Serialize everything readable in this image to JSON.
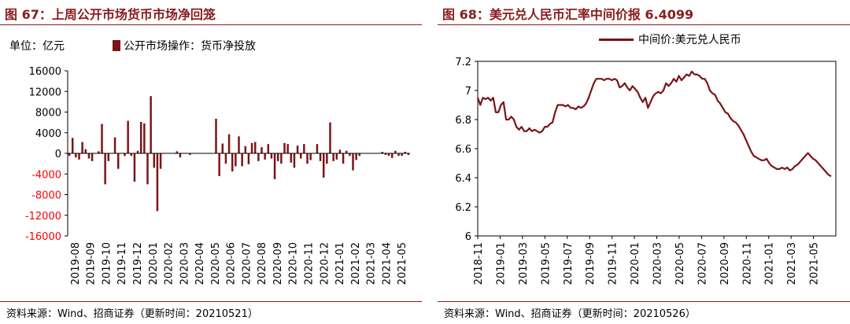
{
  "charts": {
    "left": {
      "title": "图 67：上周公开市场货币市场净回笼",
      "unit_label": "单位：亿元",
      "source": "资料来源：Wind、招商证券（更新时间：20210521）"
    },
    "right": {
      "title": "图 68：美元兑人民币汇率中间价报 6.4099",
      "source": "资料来源：Wind、招商证券（更新时间：20210526）"
    }
  },
  "colors": {
    "series": "#7b1416",
    "negative_tick": "#ff0000",
    "title": "#8a1c1c"
  },
  "chart_data": [
    {
      "type": "bar",
      "title": "图 67：上周公开市场货币市场净回笼",
      "ylabel": "单位：亿元",
      "ylim": [
        -16000,
        16000
      ],
      "yticks": [
        16000,
        12000,
        8000,
        4000,
        0,
        -4000,
        -8000,
        -12000,
        -16000
      ],
      "x_tick_labels": [
        "2019-08",
        "2019-09",
        "2019-10",
        "2019-11",
        "2019-12",
        "2020-01",
        "2020-02",
        "2020-03",
        "2020-04",
        "2020-05",
        "2020-06",
        "2020-07",
        "2020-08",
        "2020-09",
        "2020-10",
        "2020-11",
        "2020-12",
        "2021-01",
        "2021-02",
        "2021-03",
        "2021-04",
        "2021-05"
      ],
      "legend_position": "top",
      "series": [
        {
          "name": "公开市场操作：货币净投放",
          "values": [
            -500,
            3000,
            -800,
            -1200,
            2200,
            800,
            -1000,
            -1500,
            0,
            400,
            5700,
            -6000,
            -1500,
            0,
            3100,
            -3000,
            0,
            -500,
            6300,
            -500,
            -5500,
            500,
            6100,
            5800,
            -6000,
            11100,
            -2800,
            -11200,
            -3000,
            0,
            0,
            0,
            0,
            400,
            -800,
            0,
            0,
            -300,
            0,
            0,
            0,
            0,
            0,
            0,
            0,
            6700,
            -4400,
            1900,
            -2000,
            3700,
            -3500,
            -2500,
            3300,
            -2500,
            1400,
            -2100,
            2000,
            2200,
            -1500,
            1200,
            -1200,
            1800,
            -1000,
            -5000,
            -1500,
            -2000,
            2000,
            1800,
            -1800,
            -2800,
            1500,
            -1000,
            1800,
            -2000,
            -1300,
            0,
            1800,
            -1500,
            -4700,
            -2000,
            6000,
            -1500,
            -1200,
            700,
            -2000,
            500,
            -500,
            -3300,
            -1300,
            -500,
            0,
            0,
            0,
            0,
            0,
            0,
            300,
            -300,
            -500,
            -900,
            500,
            -500,
            -500,
            300,
            -300
          ]
        }
      ]
    },
    {
      "type": "line",
      "title": "图 68：美元兑人民币汇率中间价报 6.4099",
      "ylim": [
        6.0,
        7.2
      ],
      "yticks": [
        7.2,
        7.0,
        6.8,
        6.6,
        6.4,
        6.2,
        6.0
      ],
      "x_tick_labels": [
        "2018-11",
        "2019-01",
        "2019-03",
        "2019-05",
        "2019-07",
        "2019-09",
        "2019-11",
        "2020-01",
        "2020-03",
        "2020-05",
        "2020-07",
        "2020-09",
        "2020-11",
        "2021-01",
        "2021-03",
        "2021-05"
      ],
      "legend_position": "top",
      "series": [
        {
          "name": "中间价:美元兑人民币",
          "values": [
            6.95,
            6.9,
            6.95,
            6.94,
            6.95,
            6.93,
            6.95,
            6.85,
            6.85,
            6.9,
            6.92,
            6.8,
            6.8,
            6.82,
            6.8,
            6.75,
            6.73,
            6.75,
            6.72,
            6.72,
            6.74,
            6.72,
            6.73,
            6.72,
            6.71,
            6.72,
            6.75,
            6.75,
            6.77,
            6.78,
            6.85,
            6.9,
            6.9,
            6.9,
            6.89,
            6.9,
            6.88,
            6.88,
            6.87,
            6.89,
            6.88,
            6.89,
            6.91,
            6.95,
            7.0,
            7.05,
            7.08,
            7.08,
            7.08,
            7.07,
            7.08,
            7.08,
            7.07,
            7.08,
            7.07,
            7.02,
            7.03,
            7.05,
            7.02,
            7.0,
            7.03,
            7.01,
            6.99,
            6.95,
            6.92,
            6.95,
            6.88,
            6.92,
            6.96,
            6.98,
            6.99,
            6.98,
            7.0,
            7.05,
            7.03,
            7.05,
            7.08,
            7.06,
            7.1,
            7.07,
            7.09,
            7.11,
            7.1,
            7.13,
            7.11,
            7.11,
            7.1,
            7.08,
            7.08,
            7.05,
            7.0,
            6.98,
            6.97,
            6.93,
            6.91,
            6.88,
            6.85,
            6.84,
            6.81,
            6.79,
            6.78,
            6.76,
            6.73,
            6.7,
            6.66,
            6.62,
            6.58,
            6.55,
            6.54,
            6.53,
            6.52,
            6.52,
            6.53,
            6.5,
            6.48,
            6.47,
            6.46,
            6.46,
            6.47,
            6.46,
            6.47,
            6.45,
            6.46,
            6.48,
            6.49,
            6.51,
            6.53,
            6.55,
            6.57,
            6.55,
            6.53,
            6.52,
            6.5,
            6.48,
            6.46,
            6.44,
            6.42,
            6.41
          ]
        }
      ]
    }
  ]
}
